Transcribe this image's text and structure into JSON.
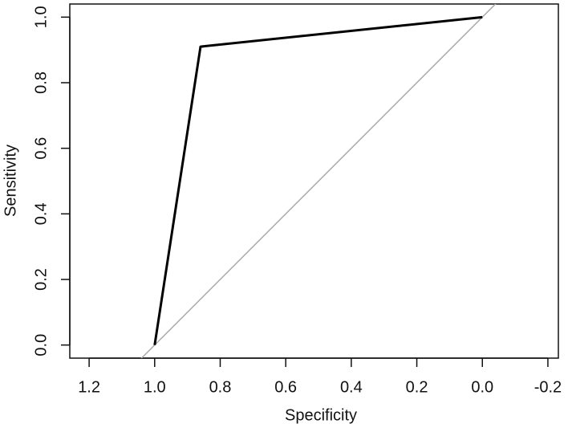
{
  "chart_data": {
    "type": "line",
    "xlabel": "Specificity",
    "ylabel": "Sensitivity",
    "x": [
      1.0,
      0.86,
      0.0
    ],
    "values": [
      0.0,
      0.91,
      1.0
    ],
    "color": "#000000",
    "xlim": [
      1.259,
      -0.232
    ],
    "ylim": [
      -0.04,
      1.04
    ],
    "xticks": [
      1.2,
      {
        "value": 1,
        "label": "1.0"
      },
      0.8,
      0.6,
      0.4,
      0.2,
      {
        "value": 0,
        "label": "0.0"
      },
      -0.2
    ],
    "yticks": [
      {
        "value": 0,
        "label": "0.0"
      },
      0.2,
      0.4,
      0.6,
      0.8,
      {
        "value": 1,
        "label": "1.0"
      }
    ],
    "diagonal": true,
    "diagonal_color": "#aaaaaa"
  }
}
